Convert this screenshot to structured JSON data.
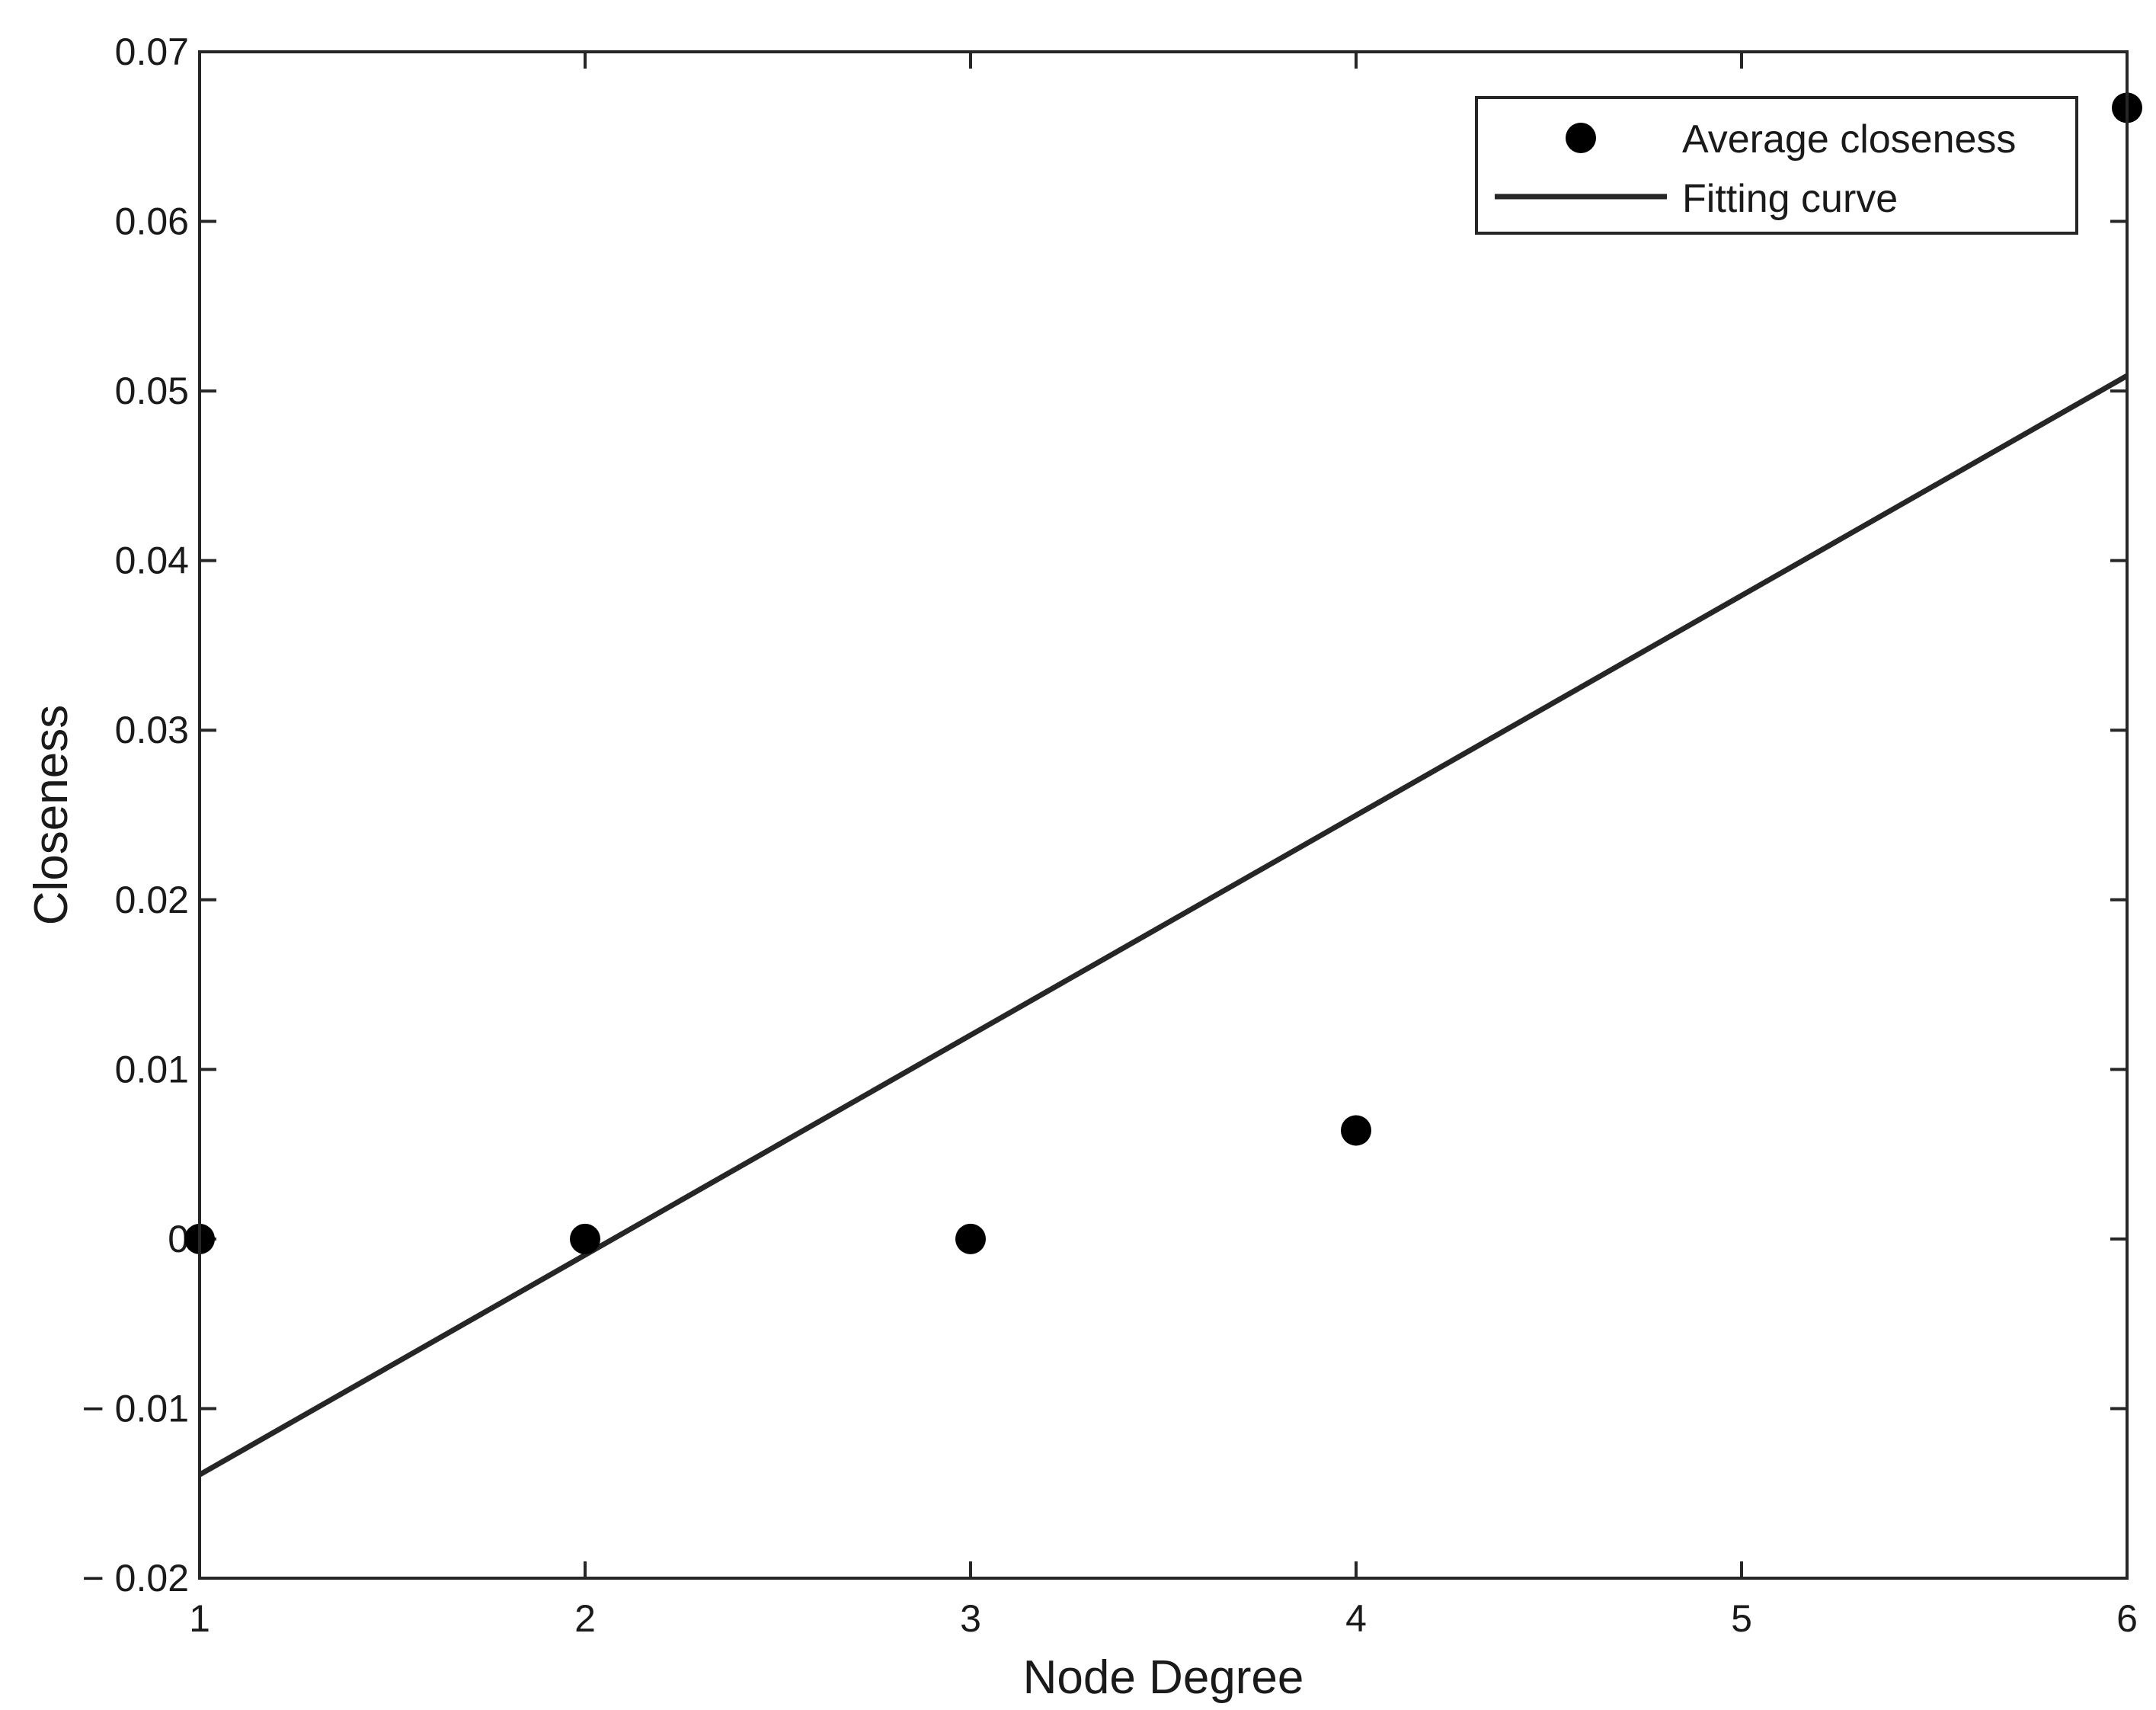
{
  "chart_data": {
    "type": "scatter",
    "xlabel": "Node Degree",
    "ylabel": "Closeness",
    "xlim": [
      1,
      6
    ],
    "ylim": [
      -0.02,
      0.07
    ],
    "xticks": [
      1,
      2,
      3,
      4,
      5,
      6
    ],
    "xtick_labels": [
      "1",
      "2",
      "3",
      "4",
      "5",
      "6"
    ],
    "yticks": [
      -0.02,
      -0.01,
      0,
      0.01,
      0.02,
      0.03,
      0.04,
      0.05,
      0.06,
      0.07
    ],
    "ytick_labels": [
      "− 0.02",
      "− 0.01",
      "0",
      "0.01",
      "0.02",
      "0.03",
      "0.04",
      "0.05",
      "0.06",
      "0.07"
    ],
    "grid": false,
    "legend_position": "top-right",
    "series": [
      {
        "name": "Average closeness",
        "kind": "scatter",
        "color": "#000000",
        "x": [
          1,
          2,
          3,
          4,
          6
        ],
        "y": [
          0,
          0,
          0,
          0.0064,
          0.0667
        ]
      },
      {
        "name": "Fitting curve",
        "kind": "line",
        "color": "#262626",
        "x": [
          1,
          6
        ],
        "y": [
          -0.0139,
          0.0509
        ]
      }
    ]
  }
}
